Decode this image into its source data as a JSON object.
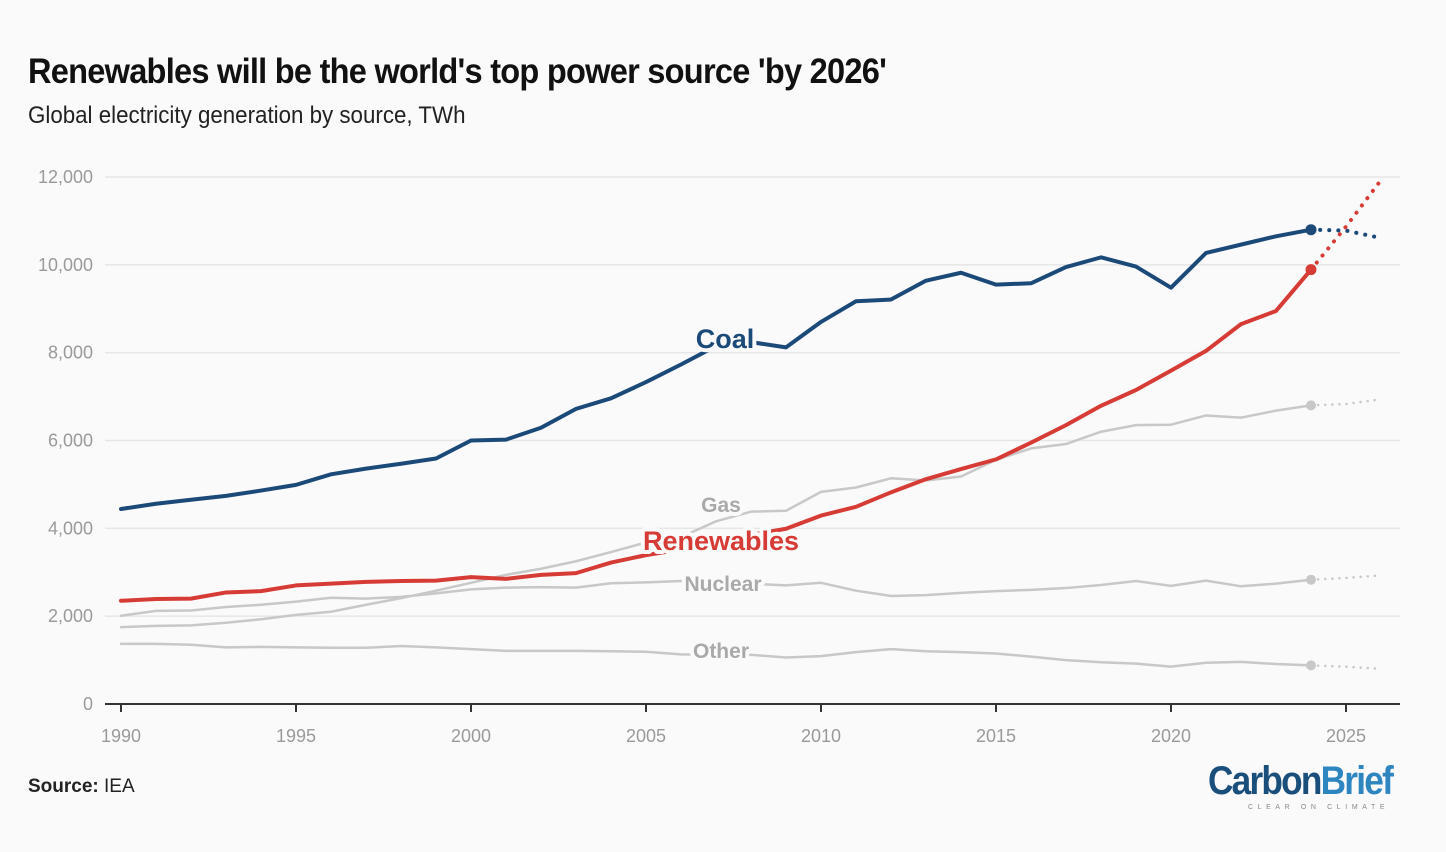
{
  "header": {
    "title": "Renewables will be the world's top power source 'by 2026'",
    "subtitle": "Global electricity generation by source, TWh"
  },
  "footer": {
    "source_label": "Source:",
    "source_value": "IEA",
    "logo_carbon": "Carbon",
    "logo_brief": "Brief",
    "logo_tagline": "CLEAR ON CLIMATE"
  },
  "chart_data": {
    "type": "line",
    "title": "Renewables will be the world's top power source 'by 2026'",
    "subtitle": "Global electricity generation by source, TWh",
    "xlabel": "",
    "ylabel": "TWh",
    "xlim": [
      1990,
      2026
    ],
    "ylim": [
      0,
      12000
    ],
    "x_ticks": [
      1990,
      1995,
      2000,
      2005,
      2010,
      2015,
      2020,
      2025
    ],
    "y_ticks": [
      0,
      2000,
      4000,
      6000,
      8000,
      10000,
      12000
    ],
    "y_tick_labels": [
      "0",
      "2,000",
      "4,000",
      "6,000",
      "8,000",
      "10,000",
      "12,000"
    ],
    "grid": true,
    "legend": "inline labels",
    "x": [
      1990,
      1991,
      1992,
      1993,
      1994,
      1995,
      1996,
      1997,
      1998,
      1999,
      2000,
      2001,
      2002,
      2003,
      2004,
      2005,
      2006,
      2007,
      2008,
      2009,
      2010,
      2011,
      2012,
      2013,
      2014,
      2015,
      2016,
      2017,
      2018,
      2019,
      2020,
      2021,
      2022,
      2023,
      2024
    ],
    "forecast_x": [
      2024,
      2025,
      2026
    ],
    "series": [
      {
        "name": "Coal",
        "label": "Coal",
        "color": "#1b4a79",
        "emphasis": true,
        "values": [
          4440,
          4560,
          4650,
          4740,
          4860,
          4990,
          5230,
          5360,
          5470,
          5590,
          6000,
          6020,
          6290,
          6720,
          6960,
          7330,
          7730,
          8150,
          8240,
          8120,
          8700,
          9170,
          9210,
          9640,
          9820,
          9550,
          9580,
          9950,
          10170,
          9960,
          9480,
          10270,
          10460,
          10650,
          10800
        ],
        "forecast": [
          10800,
          10780,
          10610
        ]
      },
      {
        "name": "Renewables",
        "label": "Renewables",
        "color": "#d63c35",
        "emphasis": true,
        "values": [
          2350,
          2390,
          2400,
          2540,
          2570,
          2700,
          2740,
          2780,
          2800,
          2810,
          2890,
          2850,
          2940,
          2980,
          3220,
          3390,
          3520,
          3650,
          3850,
          3990,
          4290,
          4490,
          4820,
          5120,
          5350,
          5570,
          5950,
          6350,
          6790,
          7150,
          7590,
          8040,
          8650,
          8950,
          9890
        ],
        "forecast": [
          9890,
          10870,
          11930
        ]
      },
      {
        "name": "Gas",
        "label": "Gas",
        "color": "#c8c8c8",
        "emphasis": false,
        "values": [
          1750,
          1780,
          1790,
          1850,
          1930,
          2030,
          2100,
          2260,
          2410,
          2580,
          2760,
          2940,
          3080,
          3250,
          3460,
          3680,
          3800,
          4160,
          4380,
          4400,
          4830,
          4930,
          5140,
          5090,
          5180,
          5560,
          5820,
          5920,
          6200,
          6350,
          6360,
          6570,
          6520,
          6680,
          6800
        ],
        "forecast": [
          6800,
          6830,
          6940
        ]
      },
      {
        "name": "Nuclear",
        "label": "Nuclear",
        "color": "#c8c8c8",
        "emphasis": false,
        "values": [
          2010,
          2120,
          2130,
          2210,
          2260,
          2330,
          2420,
          2400,
          2440,
          2520,
          2610,
          2650,
          2660,
          2650,
          2750,
          2770,
          2800,
          2720,
          2740,
          2700,
          2760,
          2580,
          2460,
          2480,
          2530,
          2570,
          2600,
          2640,
          2710,
          2800,
          2690,
          2810,
          2680,
          2740,
          2830
        ],
        "forecast": [
          2830,
          2870,
          2930
        ]
      },
      {
        "name": "Other",
        "label": "Other",
        "color": "#c8c8c8",
        "emphasis": false,
        "values": [
          1370,
          1370,
          1350,
          1290,
          1300,
          1290,
          1280,
          1280,
          1320,
          1290,
          1250,
          1210,
          1210,
          1210,
          1200,
          1190,
          1130,
          1120,
          1120,
          1060,
          1090,
          1180,
          1250,
          1200,
          1180,
          1150,
          1080,
          1000,
          950,
          920,
          850,
          940,
          960,
          910,
          880
        ],
        "forecast": [
          880,
          850,
          800
        ]
      }
    ]
  }
}
